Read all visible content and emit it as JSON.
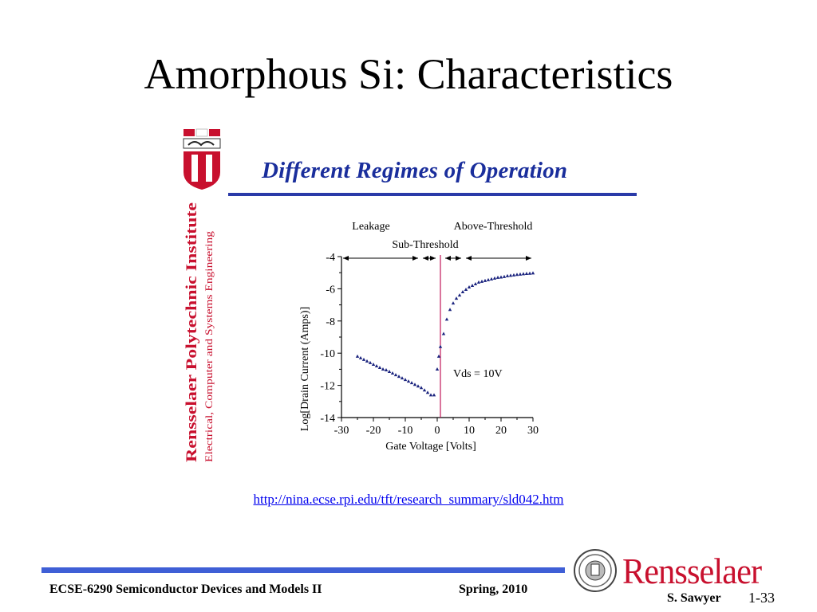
{
  "slide": {
    "title": "Amorphous Si: Characteristics",
    "source_url": "http://nina.ecse.rpi.edu/tft/research_summary/sld042.htm"
  },
  "figure": {
    "heading": "Different Regimes of Operation",
    "institute_name": "Rensselaer Polytechnic Institute",
    "department": "Electrical, Computer and Systems Engineering",
    "heading_color": "#1a2e9c",
    "institute_color": "#c8102e"
  },
  "chart_data": {
    "type": "scatter",
    "xlabel": "Gate Voltage [Volts]",
    "ylabel": "Log[Drain Current (Amps)]",
    "xlim": [
      -30,
      30
    ],
    "ylim": [
      -14,
      -4
    ],
    "x_ticks": [
      "-30",
      "-20",
      "-10",
      "0",
      "10",
      "20",
      "30"
    ],
    "y_ticks": [
      "-4",
      "-6",
      "-8",
      "-10",
      "-12",
      "-14"
    ],
    "regions": {
      "leakage": "Leakage",
      "sub_threshold": "Sub-Threshold",
      "above_threshold": "Above-Threshold"
    },
    "annotation": "Vds = 10V",
    "threshold_voltage": 1,
    "marker_color": "#1a237e",
    "threshold_line_color": "#c2185b",
    "series": [
      {
        "x": [
          -25,
          -24,
          -23,
          -22,
          -21,
          -20,
          -19,
          -18,
          -17,
          -16,
          -15,
          -14,
          -13,
          -12,
          -11,
          -10,
          -9,
          -8,
          -7,
          -6,
          -5,
          -4,
          -3,
          -2,
          -1,
          0,
          0.5,
          1,
          2,
          3,
          4,
          5,
          6,
          7,
          8,
          9,
          10,
          11,
          12,
          13,
          14,
          15,
          16,
          17,
          18,
          19,
          20,
          21,
          22,
          23,
          24,
          25,
          26,
          27,
          28,
          29,
          30
        ],
        "y": [
          -10.2,
          -10.3,
          -10.4,
          -10.5,
          -10.6,
          -10.7,
          -10.8,
          -10.9,
          -11.0,
          -11.05,
          -11.15,
          -11.25,
          -11.35,
          -11.45,
          -11.55,
          -11.65,
          -11.75,
          -11.85,
          -11.95,
          -12.05,
          -12.15,
          -12.3,
          -12.45,
          -12.6,
          -12.6,
          -11.0,
          -10.2,
          -9.6,
          -8.8,
          -7.9,
          -7.3,
          -6.9,
          -6.6,
          -6.4,
          -6.2,
          -6.05,
          -5.9,
          -5.8,
          -5.7,
          -5.6,
          -5.55,
          -5.5,
          -5.45,
          -5.4,
          -5.35,
          -5.3,
          -5.28,
          -5.25,
          -5.2,
          -5.18,
          -5.15,
          -5.12,
          -5.1,
          -5.08,
          -5.06,
          -5.05,
          -5.03
        ]
      }
    ]
  },
  "footer": {
    "course": "ECSE-6290 Semiconductor Devices and Models II",
    "term": "Spring, 2010",
    "author": "S. Sawyer",
    "page": "1-33",
    "logo_text": "Rensselaer",
    "bar_color": "#3f5fd6"
  }
}
